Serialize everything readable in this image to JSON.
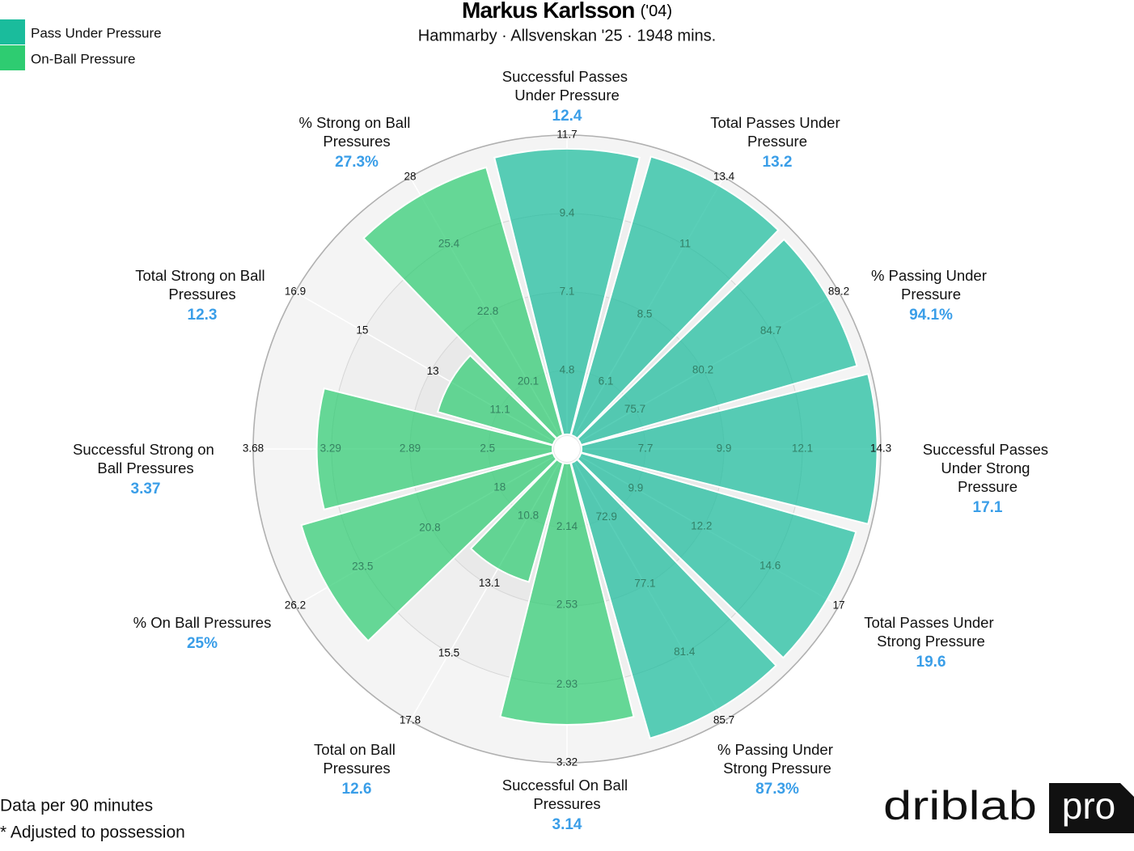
{
  "chart_data": {
    "type": "pizza",
    "title": "Markus Karlsson",
    "title_suffix": "('04)",
    "subtitle": "Hammarby · Allsvenskan '25 · 1948 mins.",
    "categories": [
      "Successful Passes Under Pressure",
      "Total Passes Under Pressure",
      "% Passing Under Pressure",
      "Successful Passes Under Strong Pressure",
      "Total Passes Under Strong Pressure",
      "% Passing Under Strong Pressure",
      "Successful On Ball Pressures",
      "Total on Ball Pressures",
      "% On Ball Pressures",
      "Successful Strong on Ball Pressures",
      "Total Strong on Ball Pressures",
      "% Strong on Ball Pressures"
    ],
    "stat_labels": [
      "12.4",
      "13.2",
      "94.1%",
      "17.1",
      "19.6",
      "87.3%",
      "3.14",
      "12.6",
      "25%",
      "3.37",
      "12.3",
      "27.3%"
    ],
    "series": [
      {
        "name": "Pass Under Pressure",
        "color": "#1abc9c",
        "values": [
          11.3,
          13.1,
          88.5,
          14.2,
          16.6,
          85.0,
          null,
          null,
          null,
          null,
          null,
          null
        ]
      },
      {
        "name": "On-Ball Pressure",
        "color": "#2ecc71",
        "values": [
          null,
          null,
          null,
          null,
          null,
          null,
          3.13,
          12.6,
          24.9,
          3.36,
          12.5,
          27.3
        ]
      }
    ],
    "axes": [
      {
        "ylim": [
          2.5,
          11.7
        ],
        "yticks": [
          4.8,
          7.1,
          9.4,
          11.7
        ]
      },
      {
        "ylim": [
          3.7,
          13.4
        ],
        "yticks": [
          6.1,
          8.5,
          11,
          13.4
        ]
      },
      {
        "ylim": [
          71.2,
          89.2
        ],
        "yticks": [
          75.7,
          80.2,
          84.7,
          89.2
        ]
      },
      {
        "ylim": [
          5.5,
          14.3
        ],
        "yticks": [
          7.7,
          9.9,
          12.1,
          14.3
        ]
      },
      {
        "ylim": [
          7.5,
          17
        ],
        "yticks": [
          9.9,
          12.2,
          14.6,
          17
        ]
      },
      {
        "ylim": [
          68.6,
          85.7
        ],
        "yticks": [
          72.9,
          77.1,
          81.4,
          85.7
        ]
      },
      {
        "ylim": [
          1.75,
          3.32
        ],
        "yticks": [
          2.14,
          2.53,
          2.93,
          3.32
        ]
      },
      {
        "ylim": [
          8.5,
          17.8
        ],
        "yticks": [
          10.8,
          13.1,
          15.5,
          17.8
        ]
      },
      {
        "ylim": [
          15.3,
          26.2
        ],
        "yticks": [
          18,
          20.8,
          23.5,
          26.2
        ]
      },
      {
        "ylim": [
          2.1,
          3.68
        ],
        "yticks": [
          2.5,
          2.89,
          3.29,
          3.68
        ]
      },
      {
        "ylim": [
          9.2,
          16.9
        ],
        "yticks": [
          11.1,
          13,
          15,
          16.9
        ]
      },
      {
        "ylim": [
          17.5,
          28
        ],
        "yticks": [
          20.1,
          22.8,
          25.4,
          28
        ]
      }
    ],
    "legend": "upper left"
  },
  "notes": [
    "Data per 90 minutes",
    "* Adjusted to possession"
  ],
  "logo": {
    "text": "driblab",
    "badge": "pro"
  }
}
